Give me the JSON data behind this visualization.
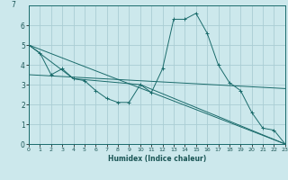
{
  "xlabel": "Humidex (Indice chaleur)",
  "bg_color": "#cce8ec",
  "grid_color": "#aacdd4",
  "line_color": "#1a6b6b",
  "xlim": [
    0,
    23
  ],
  "ylim": [
    0,
    7
  ],
  "yticks": [
    0,
    1,
    2,
    3,
    4,
    5,
    6
  ],
  "xticks": [
    0,
    1,
    2,
    3,
    4,
    5,
    6,
    7,
    8,
    9,
    10,
    11,
    12,
    13,
    14,
    15,
    16,
    17,
    18,
    19,
    20,
    21,
    22,
    23
  ],
  "series": [
    {
      "x": [
        0,
        1,
        2,
        3,
        4,
        5,
        6,
        7,
        8,
        9,
        10,
        11,
        12,
        13,
        14,
        15,
        16,
        17,
        18,
        19,
        20,
        21,
        22,
        23
      ],
      "y": [
        5.0,
        4.6,
        3.5,
        3.8,
        3.3,
        3.2,
        2.7,
        2.3,
        2.1,
        2.1,
        3.0,
        2.6,
        3.8,
        6.3,
        6.3,
        6.6,
        5.6,
        4.0,
        3.1,
        2.7,
        1.6,
        0.8,
        0.7,
        0.0
      ],
      "marker": true
    },
    {
      "x": [
        0,
        4,
        10,
        23
      ],
      "y": [
        5.0,
        3.3,
        3.0,
        0.0
      ],
      "marker": false
    },
    {
      "x": [
        0,
        23
      ],
      "y": [
        3.5,
        2.8
      ],
      "marker": false
    },
    {
      "x": [
        0,
        23
      ],
      "y": [
        5.0,
        0.0
      ],
      "marker": false
    }
  ]
}
